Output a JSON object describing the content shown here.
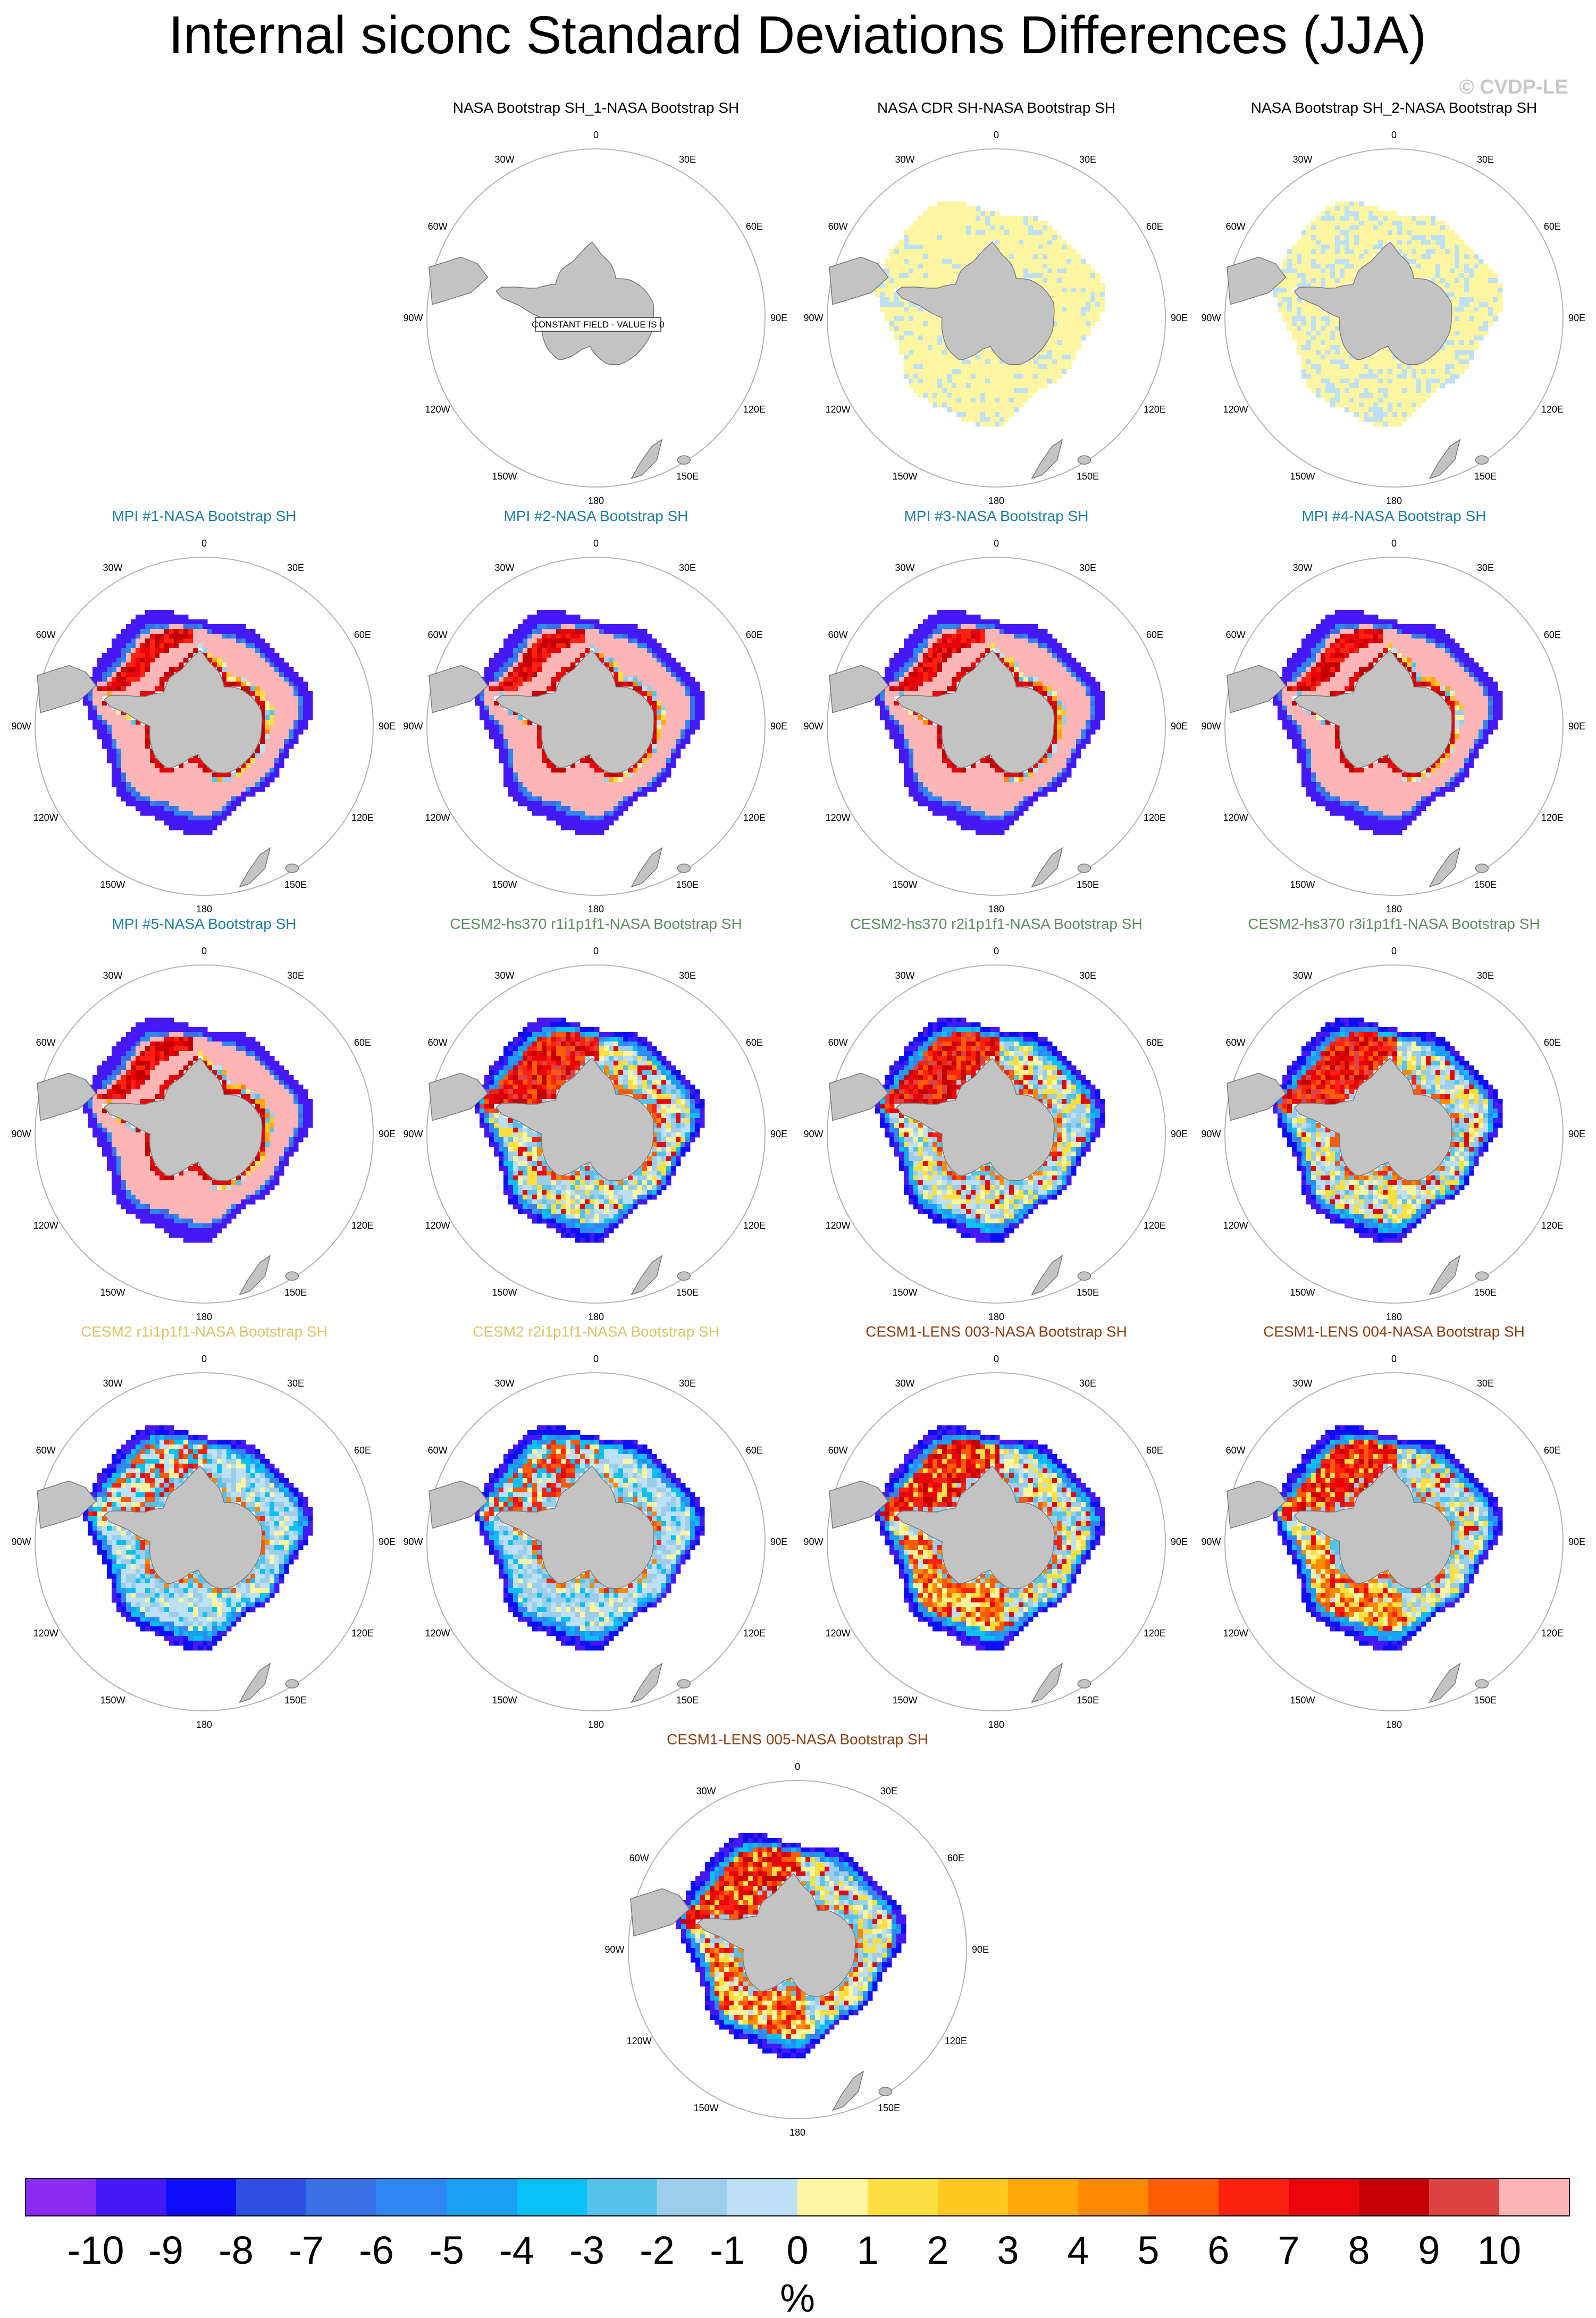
{
  "title": "Internal siconc Standard Deviations Differences (JJA)",
  "credit": "© CVDP-LE",
  "chart_data": {
    "type": "heatmap",
    "projection": "south-polar-stereographic",
    "units": "%",
    "colorbar": {
      "ticks": [
        "-10",
        "-9",
        "-8",
        "-7",
        "-6",
        "-5",
        "-4",
        "-3",
        "-2",
        "-1",
        "0",
        "1",
        "2",
        "3",
        "4",
        "5",
        "6",
        "7",
        "8",
        "9",
        "10"
      ],
      "colors": [
        "#8a2cf5",
        "#4419f5",
        "#0d0dfa",
        "#2e4fe0",
        "#3a70e6",
        "#2f86f5",
        "#19a0f5",
        "#07c0f5",
        "#56c3ef",
        "#9ccdea",
        "#bee0f4",
        "#fef5a0",
        "#fde040",
        "#ffc71f",
        "#fea80a",
        "#fe8a00",
        "#fd5c02",
        "#fd2210",
        "#e8040a",
        "#c30003",
        "#dc4343",
        "#fdb5b5"
      ],
      "unit": "%"
    },
    "lon_labels": [
      "0",
      "30E",
      "60E",
      "90E",
      "120E",
      "150E",
      "180",
      "150W",
      "120W",
      "90W",
      "60W",
      "30W"
    ],
    "panels": [
      {
        "title": "NASA Bootstrap SH_1-NASA Bootstrap SH",
        "group": "obs",
        "pattern": "constant",
        "note": "CONSTANT FIELD - VALUE IS 0"
      },
      {
        "title": "NASA CDR SH-NASA Bootstrap SH",
        "group": "obs",
        "pattern": "obs_cdr",
        "note": ""
      },
      {
        "title": "NASA Bootstrap SH_2-NASA Bootstrap SH",
        "group": "obs",
        "pattern": "obs_bs2",
        "note": ""
      },
      {
        "title": "MPI #1-NASA Bootstrap SH",
        "group": "MPI",
        "pattern": "mpi",
        "note": ""
      },
      {
        "title": "MPI #2-NASA Bootstrap SH",
        "group": "MPI",
        "pattern": "mpi",
        "note": ""
      },
      {
        "title": "MPI #3-NASA Bootstrap SH",
        "group": "MPI",
        "pattern": "mpi",
        "note": ""
      },
      {
        "title": "MPI #4-NASA Bootstrap SH",
        "group": "MPI",
        "pattern": "mpi",
        "note": ""
      },
      {
        "title": "MPI #5-NASA Bootstrap SH",
        "group": "MPI",
        "pattern": "mpi",
        "note": ""
      },
      {
        "title": "CESM2-hs370 r1i1p1f1-NASA Bootstrap SH",
        "group": "CESM2-hs370",
        "pattern": "hs370",
        "note": ""
      },
      {
        "title": "CESM2-hs370 r2i1p1f1-NASA Bootstrap SH",
        "group": "CESM2-hs370",
        "pattern": "hs370",
        "note": ""
      },
      {
        "title": "CESM2-hs370 r3i1p1f1-NASA Bootstrap SH",
        "group": "CESM2-hs370",
        "pattern": "hs370",
        "note": ""
      },
      {
        "title": "CESM2 r1i1p1f1-NASA Bootstrap SH",
        "group": "CESM2",
        "pattern": "cesm2",
        "note": ""
      },
      {
        "title": "CESM2 r2i1p1f1-NASA Bootstrap SH",
        "group": "CESM2",
        "pattern": "cesm2",
        "note": ""
      },
      {
        "title": "CESM1-LENS 003-NASA Bootstrap SH",
        "group": "CESM1-LENS",
        "pattern": "lens",
        "note": ""
      },
      {
        "title": "CESM1-LENS 004-NASA Bootstrap SH",
        "group": "CESM1-LENS",
        "pattern": "lens",
        "note": ""
      },
      {
        "title": "CESM1-LENS 005-NASA Bootstrap SH",
        "group": "CESM1-LENS",
        "pattern": "lens",
        "note": ""
      }
    ]
  },
  "colors": {
    "title": "#000000",
    "credit": "#c8c8c8",
    "obs": "#000000",
    "MPI": "#1e7f9e",
    "CESM2-hs370": "#5f8d5f",
    "CESM2": "#d7c56a",
    "CESM1-LENS": "#8b3f12",
    "land": "#c3c3c3",
    "land_edge": "#777777",
    "circle": "#b4b4b4"
  }
}
